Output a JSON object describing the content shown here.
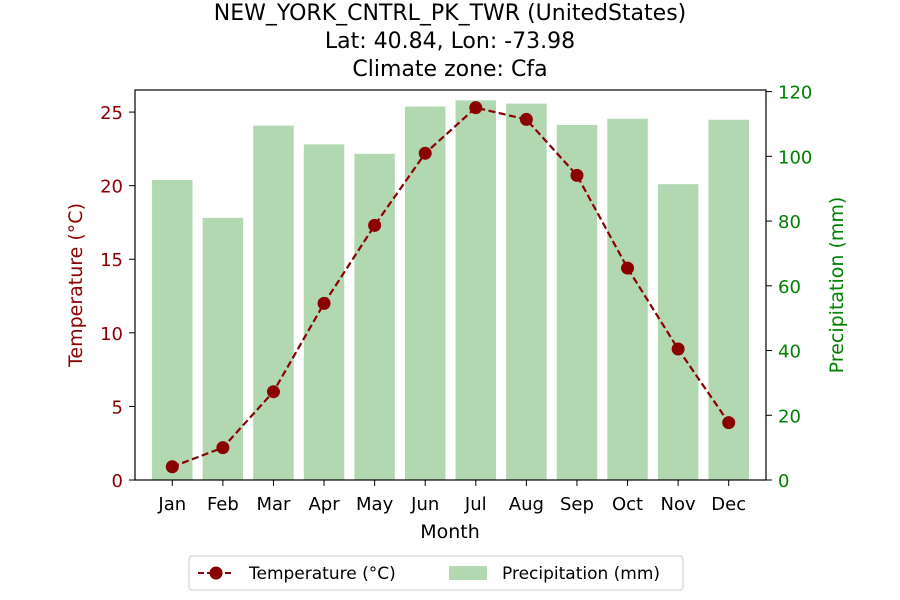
{
  "title_lines": [
    "NEW_YORK_CNTRL_PK_TWR (UnitedStates)",
    "Lat: 40.84, Lon: -73.98",
    "Climate zone: Cfa"
  ],
  "colors": {
    "temperature": "#8b0000",
    "precipitation": "#b2d8b2",
    "right_axis": "#008000"
  },
  "chart_data": {
    "type": "bar",
    "categories": [
      "Jan",
      "Feb",
      "Mar",
      "Apr",
      "May",
      "Jun",
      "Jul",
      "Aug",
      "Sep",
      "Oct",
      "Nov",
      "Dec"
    ],
    "xlabel": "Month",
    "y_left": {
      "label": "Temperature (°C)",
      "lim": [
        0,
        26.5
      ],
      "ticks": [
        0,
        5,
        10,
        15,
        20,
        25
      ]
    },
    "y_right": {
      "label": "Precipitation (mm)",
      "lim": [
        0,
        120.5
      ],
      "ticks": [
        0,
        20,
        40,
        60,
        80,
        100,
        120
      ]
    },
    "series": [
      {
        "name": "Temperature (°C)",
        "type": "line",
        "axis": "left",
        "values": [
          0.9,
          2.2,
          6.0,
          12.0,
          17.3,
          22.2,
          25.3,
          24.5,
          20.7,
          14.4,
          8.9,
          3.9
        ]
      },
      {
        "name": "Precipitation (mm)",
        "type": "bar",
        "axis": "right",
        "values": [
          92.7,
          81.0,
          109.5,
          103.7,
          100.8,
          115.4,
          117.3,
          116.3,
          109.7,
          111.6,
          91.4,
          111.3
        ]
      }
    ],
    "legend": {
      "position": "bottom-center"
    }
  }
}
